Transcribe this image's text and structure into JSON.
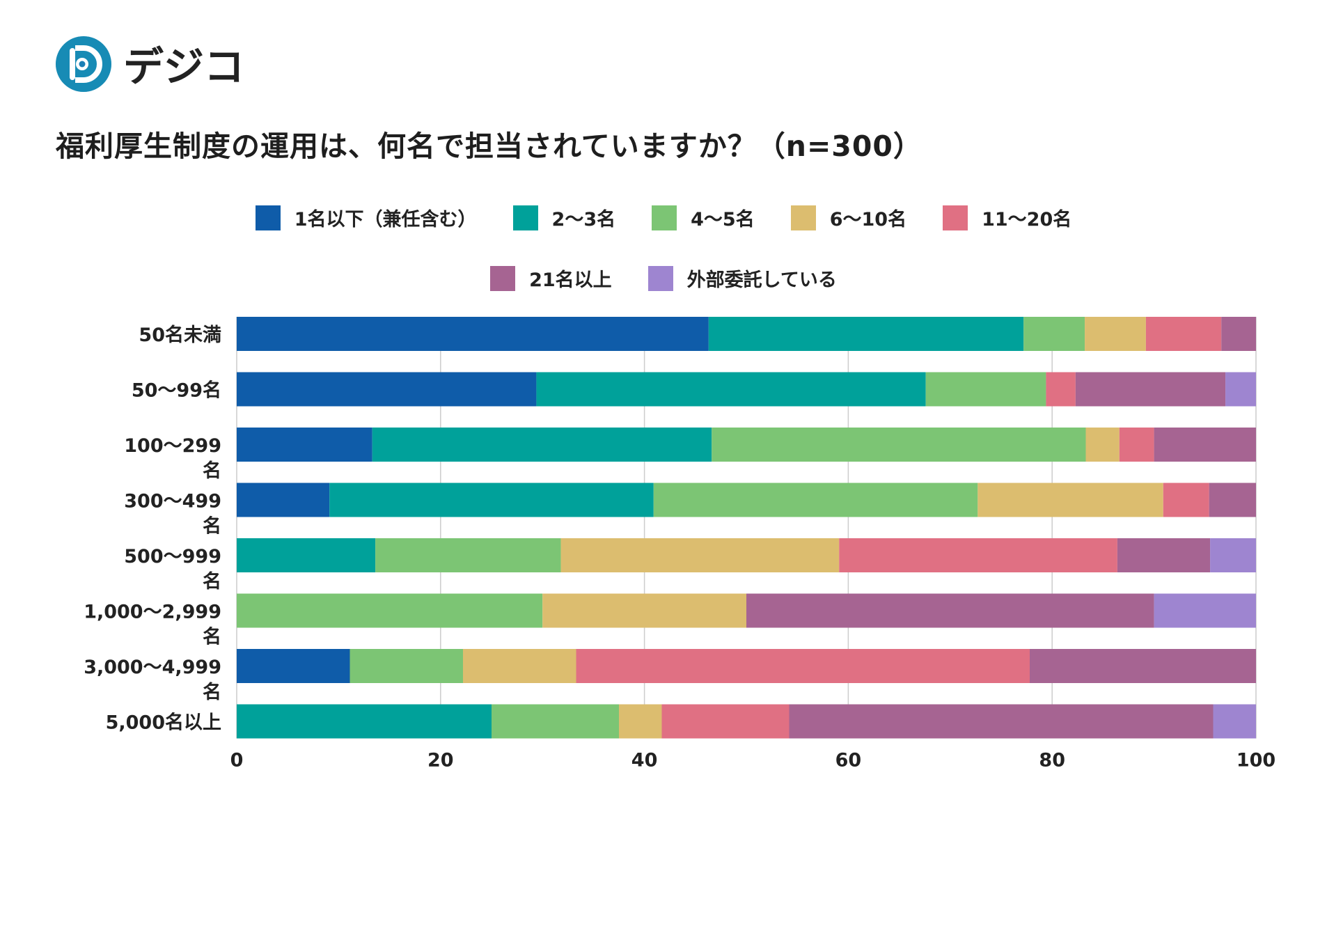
{
  "brand": {
    "name": "デジコ",
    "color": "#1a7fb6"
  },
  "chart_data": {
    "type": "bar",
    "orientation": "horizontal",
    "stacked": true,
    "title": "福利厚生制度の運用は、何名で担当されていますか？（n=300）",
    "categories": [
      "50名未満",
      "50〜99名",
      "100〜299名",
      "300〜499名",
      "500〜999名",
      "1,000〜2,999名",
      "3,000〜4,999名",
      "5,000名以上"
    ],
    "series": [
      {
        "name": "1名以下（兼任含む）",
        "color": "#0f5ca9",
        "values": [
          46.3,
          29.4,
          13.3,
          9.1,
          0,
          0,
          11.1,
          0
        ]
      },
      {
        "name": "2〜3名",
        "color": "#00a19a",
        "values": [
          30.9,
          38.2,
          33.3,
          31.8,
          13.6,
          0,
          0,
          25.0
        ]
      },
      {
        "name": "4〜5名",
        "color": "#7cc574",
        "values": [
          6.0,
          11.8,
          36.7,
          31.8,
          18.2,
          30.0,
          11.1,
          12.5
        ]
      },
      {
        "name": "6〜10名",
        "color": "#dcbd6f",
        "values": [
          6.0,
          0,
          3.3,
          18.2,
          27.3,
          20.0,
          11.1,
          4.2
        ]
      },
      {
        "name": "11〜20名",
        "color": "#e07083",
        "values": [
          7.4,
          2.9,
          3.4,
          4.5,
          27.3,
          0,
          44.5,
          12.5
        ]
      },
      {
        "name": "21名以上",
        "color": "#a66492",
        "values": [
          3.4,
          14.7,
          10.0,
          4.6,
          9.1,
          40.0,
          22.2,
          41.6
        ]
      },
      {
        "name": "外部委託している",
        "color": "#9e85d0",
        "values": [
          0,
          3.0,
          0,
          0,
          4.5,
          10.0,
          0,
          4.2
        ]
      }
    ],
    "xlim": [
      0,
      100
    ],
    "xticks": [
      0,
      20,
      40,
      60,
      80,
      100
    ],
    "grid": true,
    "legend_position": "top-center"
  }
}
